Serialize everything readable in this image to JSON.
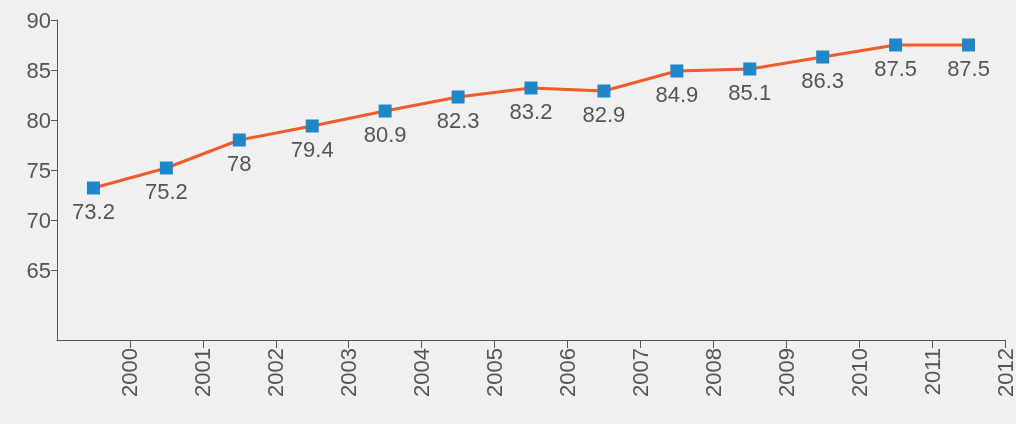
{
  "chart_data": {
    "type": "line",
    "x": [
      1999.5,
      2000.5,
      2001.5,
      2002.5,
      2003.5,
      2004.5,
      2005.5,
      2006.5,
      2007.5,
      2008.5,
      2009.5,
      2010.5,
      2011.5
    ],
    "series": [
      {
        "color": "#f15a29",
        "values": [
          73.2,
          75.2,
          78,
          79.4,
          80.9,
          82.3,
          83.2,
          82.9,
          84.9,
          85.1,
          86.3,
          87.5,
          87.5
        ]
      }
    ],
    "xlim": [
      1999,
      2012
    ],
    "xticks": [
      2000,
      2001,
      2002,
      2003,
      2004,
      2005,
      2006,
      2007,
      2008,
      2009,
      2010,
      2011,
      2012
    ],
    "ylim": [
      58,
      90
    ],
    "yticks": [
      65,
      70,
      75,
      80,
      85,
      90
    ],
    "marker": "square",
    "data_labels": true,
    "grid": false,
    "line_style": "solid"
  }
}
